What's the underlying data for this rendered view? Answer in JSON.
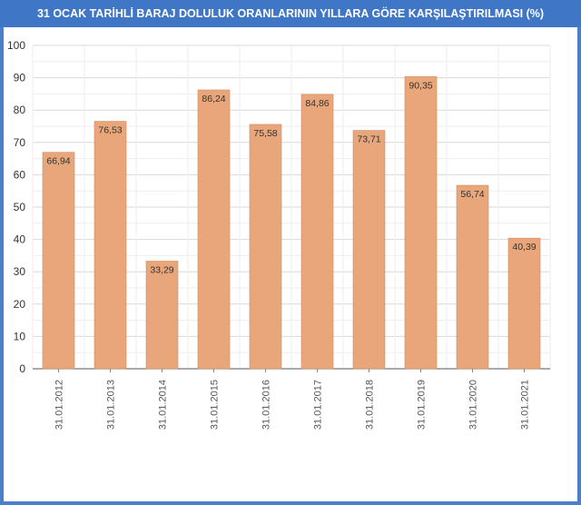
{
  "chart_data": {
    "type": "bar",
    "title": "31 OCAK TARİHLİ BARAJ DOLULUK ORANLARININ YILLARA GÖRE KARŞILAŞTIRILMASI (%)",
    "categories": [
      "31.01.2012",
      "31.01.2013",
      "31.01.2014",
      "31.01.2015",
      "31.01.2016",
      "31.01.2017",
      "31.01.2018",
      "31.01.2019",
      "31.01.2020",
      "31.01.2021"
    ],
    "values": [
      66.94,
      76.53,
      33.29,
      86.24,
      75.58,
      84.86,
      73.71,
      90.35,
      56.74,
      40.39
    ],
    "value_labels": [
      "66,94",
      "76,53",
      "33,29",
      "86,24",
      "75,58",
      "84,86",
      "73,71",
      "90,35",
      "56,74",
      "40,39"
    ],
    "ylim": [
      0,
      100
    ],
    "yticks": [
      "0",
      "10",
      "20",
      "30",
      "40",
      "50",
      "60",
      "70",
      "80",
      "90",
      "100"
    ],
    "xlabel": "",
    "ylabel": "",
    "grid": true,
    "legend": "none",
    "bar_color": "#e8a67a",
    "bar_stroke": "#d08e62",
    "title_bar_color": "#3f77c6",
    "frame_color": "#4a7fc9"
  }
}
